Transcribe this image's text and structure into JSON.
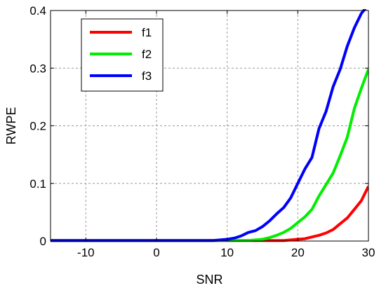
{
  "chart_data": {
    "type": "line",
    "title": "",
    "xlabel": "SNR",
    "ylabel": "RWPE",
    "xlim": [
      -15,
      30
    ],
    "ylim": [
      0,
      0.4
    ],
    "xticks": [
      -10,
      0,
      10,
      20,
      30
    ],
    "xtick_labels": [
      "-10",
      "0",
      "10",
      "20",
      "30"
    ],
    "yticks": [
      0,
      0.1,
      0.2,
      0.3,
      0.4
    ],
    "ytick_labels": [
      "0",
      "0.1",
      "0.2",
      "0.3",
      "0.4"
    ],
    "grid": true,
    "legend_position": "top-left",
    "x": [
      -15,
      -14,
      -13,
      -12,
      -11,
      -10,
      -9,
      -8,
      -7,
      -6,
      -5,
      -4,
      -3,
      -2,
      -1,
      0,
      1,
      2,
      3,
      4,
      5,
      6,
      7,
      8,
      9,
      10,
      11,
      12,
      13,
      14,
      15,
      16,
      17,
      18,
      19,
      20,
      21,
      22,
      23,
      24,
      25,
      26,
      27,
      28,
      29,
      30
    ],
    "series": [
      {
        "name": "f1",
        "color": "#ff0000",
        "values": [
          0.001,
          0.001,
          0.001,
          0.001,
          0.001,
          0.001,
          0.001,
          0.001,
          0.001,
          0.001,
          0.001,
          0.001,
          0.001,
          0.001,
          0.001,
          0.001,
          0.001,
          0.001,
          0.001,
          0.001,
          0.001,
          0.001,
          0.001,
          0.001,
          0.001,
          0.001,
          0.001,
          0.001,
          0.001,
          0.001,
          0.001,
          0.001,
          0.001,
          0.001,
          0.002,
          0.003,
          0.004,
          0.007,
          0.01,
          0.014,
          0.02,
          0.03,
          0.04,
          0.055,
          0.07,
          0.095
        ]
      },
      {
        "name": "f2",
        "color": "#00ee00",
        "values": [
          0.001,
          0.001,
          0.001,
          0.001,
          0.001,
          0.001,
          0.001,
          0.001,
          0.001,
          0.001,
          0.001,
          0.001,
          0.001,
          0.001,
          0.001,
          0.001,
          0.001,
          0.001,
          0.001,
          0.001,
          0.001,
          0.001,
          0.001,
          0.001,
          0.001,
          0.001,
          0.001,
          0.001,
          0.001,
          0.002,
          0.003,
          0.006,
          0.01,
          0.015,
          0.022,
          0.032,
          0.042,
          0.055,
          0.078,
          0.098,
          0.118,
          0.148,
          0.18,
          0.23,
          0.265,
          0.298
        ]
      },
      {
        "name": "f3",
        "color": "#0000ff",
        "values": [
          0.001,
          0.001,
          0.001,
          0.001,
          0.001,
          0.001,
          0.001,
          0.001,
          0.001,
          0.001,
          0.001,
          0.001,
          0.001,
          0.001,
          0.001,
          0.001,
          0.001,
          0.001,
          0.001,
          0.001,
          0.001,
          0.001,
          0.001,
          0.001,
          0.002,
          0.003,
          0.005,
          0.009,
          0.015,
          0.018,
          0.025,
          0.035,
          0.047,
          0.058,
          0.075,
          0.1,
          0.125,
          0.145,
          0.195,
          0.225,
          0.268,
          0.298,
          0.338,
          0.37,
          0.395,
          0.41
        ]
      }
    ]
  }
}
